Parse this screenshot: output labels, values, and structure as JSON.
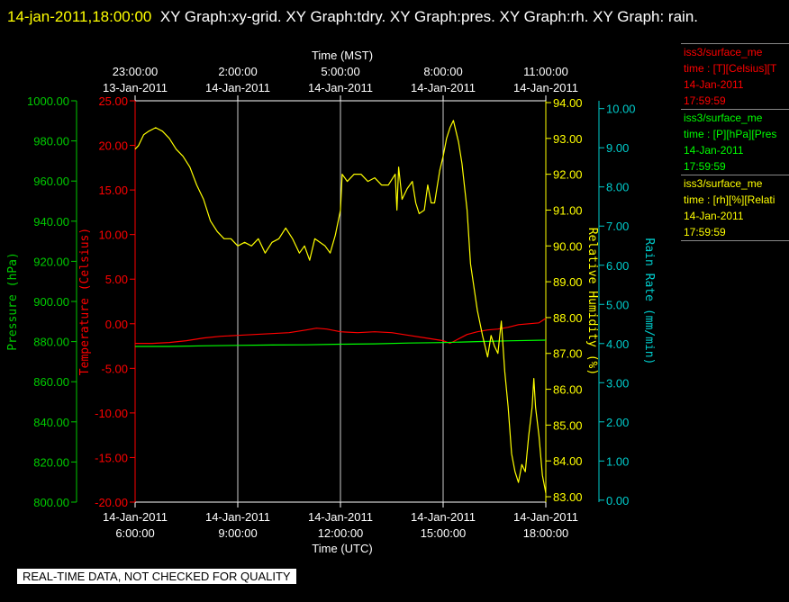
{
  "header": {
    "timestamp": "14-jan-2011,18:00:00",
    "title": "XY Graph:xy-grid.  XY Graph:tdry.  XY Graph:pres.  XY Graph:rh.  XY Graph: rain."
  },
  "legend": [
    {
      "line1": "iss3/surface_me",
      "line2": "time : [T][Celsius][T",
      "line3": "14-Jan-2011",
      "line4": "17:59:59",
      "color": "#ff0000"
    },
    {
      "line1": "iss3/surface_me",
      "line2": "time : [P][hPa][Pres",
      "line3": "14-Jan-2011",
      "line4": "17:59:59",
      "color": "#00ff00"
    },
    {
      "line1": "iss3/surface_me",
      "line2": "time : [rh][%][Relati",
      "line3": "14-Jan-2011",
      "line4": "17:59:59",
      "color": "#ffff00"
    }
  ],
  "footer_note": "REAL-TIME DATA, NOT CHECKED FOR QUALITY",
  "chart_data": {
    "type": "line",
    "grid": true,
    "x_bottom": {
      "label": "Time (UTC)",
      "range_hours": [
        6,
        18
      ],
      "ticks": [
        {
          "h": 6,
          "date": "14-Jan-2011",
          "time": "6:00:00"
        },
        {
          "h": 9,
          "date": "14-Jan-2011",
          "time": "9:00:00"
        },
        {
          "h": 12,
          "date": "14-Jan-2011",
          "time": "12:00:00"
        },
        {
          "h": 15,
          "date": "14-Jan-2011",
          "time": "15:00:00"
        },
        {
          "h": 18,
          "date": "14-Jan-2011",
          "time": "18:00:00"
        }
      ]
    },
    "x_top": {
      "label": "Time (MST)",
      "ticks": [
        {
          "h": 6,
          "date": "13-Jan-2011",
          "time": "23:00:00"
        },
        {
          "h": 9,
          "date": "14-Jan-2011",
          "time": "2:00:00"
        },
        {
          "h": 12,
          "date": "14-Jan-2011",
          "time": "5:00:00"
        },
        {
          "h": 15,
          "date": "14-Jan-2011",
          "time": "8:00:00"
        },
        {
          "h": 18,
          "date": "14-Jan-2011",
          "time": "11:00:00"
        }
      ]
    },
    "axes": {
      "pressure": {
        "label": "Pressure (hPa)",
        "range": [
          800,
          1000
        ],
        "color": "#00cc00",
        "ticks": [
          "800.00",
          "820.00",
          "840.00",
          "860.00",
          "880.00",
          "900.00",
          "920.00",
          "940.00",
          "960.00",
          "980.00",
          "1000.00"
        ]
      },
      "temperature": {
        "label": "Temperature (Celsius)",
        "range": [
          -20,
          25
        ],
        "color": "#ff0000",
        "ticks": [
          "-20.00",
          "-15.00",
          "-10.00",
          "-5.00",
          "0.00",
          "5.00",
          "10.00",
          "15.00",
          "20.00",
          "25.00"
        ]
      },
      "humidity": {
        "label": "Relative Humidity (%)",
        "range": [
          82.85,
          94.05
        ],
        "color": "#ffff00",
        "ticks": [
          "83.00",
          "84.00",
          "85.00",
          "86.00",
          "87.00",
          "88.00",
          "89.00",
          "90.00",
          "91.00",
          "92.00",
          "93.00",
          "94.00"
        ]
      },
      "rain": {
        "label": "Rain Rate (mm/min)",
        "range": [
          -0.05,
          10.2
        ],
        "color": "#00cccc",
        "ticks": [
          "0.00",
          "1.00",
          "2.00",
          "3.00",
          "4.00",
          "5.00",
          "6.00",
          "7.00",
          "8.00",
          "9.00",
          "10.00"
        ]
      }
    },
    "series": [
      {
        "name": "temperature",
        "axis": "temperature",
        "color": "#ff0000",
        "points": [
          [
            6.0,
            -2.2
          ],
          [
            6.5,
            -2.2
          ],
          [
            7.0,
            -2.1
          ],
          [
            7.5,
            -1.9
          ],
          [
            8.0,
            -1.6
          ],
          [
            8.5,
            -1.4
          ],
          [
            9.0,
            -1.3
          ],
          [
            9.5,
            -1.2
          ],
          [
            10.0,
            -1.1
          ],
          [
            10.5,
            -1.0
          ],
          [
            11.0,
            -0.7
          ],
          [
            11.3,
            -0.5
          ],
          [
            11.6,
            -0.6
          ],
          [
            12.0,
            -0.9
          ],
          [
            12.5,
            -1.0
          ],
          [
            13.0,
            -0.9
          ],
          [
            13.5,
            -1.0
          ],
          [
            14.0,
            -1.3
          ],
          [
            14.5,
            -1.6
          ],
          [
            15.0,
            -1.9
          ],
          [
            15.2,
            -2.2
          ],
          [
            15.4,
            -1.8
          ],
          [
            15.7,
            -1.2
          ],
          [
            16.0,
            -0.9
          ],
          [
            16.3,
            -0.7
          ],
          [
            16.6,
            -0.6
          ],
          [
            16.9,
            -0.4
          ],
          [
            17.2,
            -0.1
          ],
          [
            17.5,
            0.0
          ],
          [
            17.8,
            0.1
          ],
          [
            18.0,
            0.6
          ]
        ]
      },
      {
        "name": "pressure",
        "axis": "pressure",
        "color": "#00ff00",
        "points": [
          [
            6.0,
            877.6
          ],
          [
            7.0,
            877.6
          ],
          [
            8.0,
            877.9
          ],
          [
            9.0,
            878.1
          ],
          [
            10.0,
            878.3
          ],
          [
            11.0,
            878.4
          ],
          [
            12.0,
            878.7
          ],
          [
            13.0,
            878.9
          ],
          [
            14.0,
            879.3
          ],
          [
            15.0,
            879.5
          ],
          [
            16.0,
            880.0
          ],
          [
            17.0,
            880.4
          ],
          [
            18.0,
            880.7
          ]
        ]
      },
      {
        "name": "humidity",
        "axis": "humidity",
        "color": "#ffff00",
        "points": [
          [
            6.0,
            92.7
          ],
          [
            6.1,
            92.8
          ],
          [
            6.25,
            93.1
          ],
          [
            6.4,
            93.2
          ],
          [
            6.6,
            93.3
          ],
          [
            6.8,
            93.2
          ],
          [
            7.0,
            93.0
          ],
          [
            7.2,
            92.7
          ],
          [
            7.4,
            92.5
          ],
          [
            7.6,
            92.2
          ],
          [
            7.8,
            91.7
          ],
          [
            8.0,
            91.3
          ],
          [
            8.2,
            90.7
          ],
          [
            8.4,
            90.4
          ],
          [
            8.6,
            90.2
          ],
          [
            8.8,
            90.2
          ],
          [
            9.0,
            90.0
          ],
          [
            9.2,
            90.1
          ],
          [
            9.4,
            90.0
          ],
          [
            9.6,
            90.2
          ],
          [
            9.8,
            89.8
          ],
          [
            10.0,
            90.1
          ],
          [
            10.2,
            90.2
          ],
          [
            10.4,
            90.5
          ],
          [
            10.6,
            90.2
          ],
          [
            10.8,
            89.8
          ],
          [
            10.95,
            90.0
          ],
          [
            11.1,
            89.6
          ],
          [
            11.25,
            90.2
          ],
          [
            11.4,
            90.1
          ],
          [
            11.55,
            90.0
          ],
          [
            11.7,
            89.8
          ],
          [
            11.85,
            90.3
          ],
          [
            12.0,
            91.0
          ],
          [
            12.05,
            92.0
          ],
          [
            12.2,
            91.8
          ],
          [
            12.4,
            92.0
          ],
          [
            12.6,
            92.0
          ],
          [
            12.8,
            91.8
          ],
          [
            13.0,
            91.9
          ],
          [
            13.2,
            91.7
          ],
          [
            13.4,
            91.7
          ],
          [
            13.6,
            92.0
          ],
          [
            13.65,
            91.0
          ],
          [
            13.7,
            92.2
          ],
          [
            13.8,
            91.3
          ],
          [
            13.95,
            91.6
          ],
          [
            14.1,
            91.8
          ],
          [
            14.2,
            91.2
          ],
          [
            14.3,
            90.9
          ],
          [
            14.45,
            91.0
          ],
          [
            14.55,
            91.7
          ],
          [
            14.65,
            91.2
          ],
          [
            14.75,
            91.2
          ],
          [
            14.9,
            92.1
          ],
          [
            15.0,
            92.5
          ],
          [
            15.1,
            93.0
          ],
          [
            15.2,
            93.3
          ],
          [
            15.3,
            93.5
          ],
          [
            15.45,
            92.9
          ],
          [
            15.55,
            92.3
          ],
          [
            15.7,
            91.0
          ],
          [
            15.8,
            89.5
          ],
          [
            16.0,
            88.2
          ],
          [
            16.15,
            87.5
          ],
          [
            16.3,
            86.9
          ],
          [
            16.4,
            87.5
          ],
          [
            16.5,
            87.2
          ],
          [
            16.6,
            87.0
          ],
          [
            16.7,
            87.9
          ],
          [
            16.8,
            86.5
          ],
          [
            16.9,
            85.5
          ],
          [
            17.0,
            84.2
          ],
          [
            17.1,
            83.7
          ],
          [
            17.2,
            83.4
          ],
          [
            17.3,
            83.9
          ],
          [
            17.4,
            83.7
          ],
          [
            17.5,
            84.7
          ],
          [
            17.6,
            85.5
          ],
          [
            17.65,
            86.3
          ],
          [
            17.7,
            85.5
          ],
          [
            17.8,
            84.7
          ],
          [
            17.9,
            83.6
          ],
          [
            18.0,
            83.1
          ]
        ]
      },
      {
        "name": "rain",
        "axis": "rain",
        "color": "#00cccc",
        "points": []
      }
    ]
  }
}
